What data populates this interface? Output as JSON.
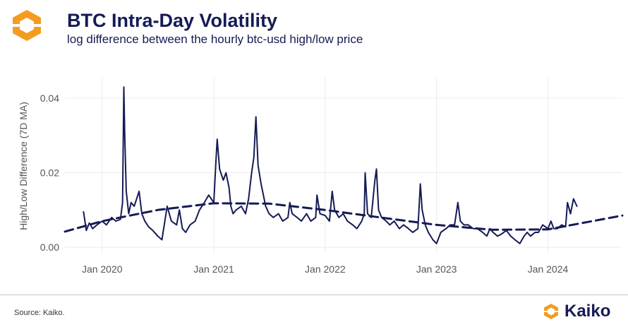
{
  "header": {
    "title": "BTC Intra-Day Volatility",
    "subtitle": "log difference between the hourly btc-usd high/low price",
    "logo_icon": "kaiko-logo-icon"
  },
  "footer": {
    "source": "Source: Kaiko.",
    "brand_name": "Kaiko",
    "brand_icon": "kaiko-logo-icon"
  },
  "colors": {
    "series": "#151b55",
    "brand_orange": "#f39c1f",
    "title": "#151b55",
    "grid": "#ececec"
  },
  "chart_data": {
    "type": "line",
    "title": "BTC Intra-Day Volatility",
    "subtitle": "log difference between the hourly btc-usd high/low price",
    "xlabel": "",
    "ylabel": "High/Low Difference (7D MA)",
    "x_ticks": [
      "Jan 2020",
      "Jan 2021",
      "Jan 2022",
      "Jan 2023",
      "Jan 2024"
    ],
    "y_ticks": [
      "0.00",
      "0.02",
      "0.04"
    ],
    "xlim": [
      "2019-09-01",
      "2024-09-01"
    ],
    "ylim": [
      -0.0015,
      0.0455
    ],
    "grid": true,
    "legend": "none",
    "series": [
      {
        "style": "solid",
        "x": [
          "2019-11-01",
          "2019-11-10",
          "2019-11-20",
          "2019-12-01",
          "2019-12-15",
          "2020-01-01",
          "2020-01-15",
          "2020-02-01",
          "2020-02-15",
          "2020-03-01",
          "2020-03-08",
          "2020-03-12",
          "2020-03-15",
          "2020-03-20",
          "2020-03-28",
          "2020-04-05",
          "2020-04-15",
          "2020-05-01",
          "2020-05-10",
          "2020-05-20",
          "2020-06-01",
          "2020-06-15",
          "2020-07-01",
          "2020-07-15",
          "2020-08-01",
          "2020-08-15",
          "2020-09-01",
          "2020-09-10",
          "2020-09-20",
          "2020-10-01",
          "2020-10-15",
          "2020-11-01",
          "2020-11-15",
          "2020-12-01",
          "2020-12-15",
          "2021-01-01",
          "2021-01-08",
          "2021-01-12",
          "2021-01-20",
          "2021-02-01",
          "2021-02-10",
          "2021-02-20",
          "2021-02-26",
          "2021-03-05",
          "2021-03-15",
          "2021-04-01",
          "2021-04-15",
          "2021-04-25",
          "2021-05-05",
          "2021-05-12",
          "2021-05-19",
          "2021-05-26",
          "2021-06-05",
          "2021-06-20",
          "2021-07-01",
          "2021-07-15",
          "2021-08-01",
          "2021-08-15",
          "2021-09-01",
          "2021-09-07",
          "2021-09-15",
          "2021-10-01",
          "2021-10-15",
          "2021-11-01",
          "2021-11-15",
          "2021-12-01",
          "2021-12-05",
          "2021-12-15",
          "2022-01-01",
          "2022-01-15",
          "2022-01-24",
          "2022-02-01",
          "2022-02-15",
          "2022-03-01",
          "2022-03-15",
          "2022-04-01",
          "2022-04-15",
          "2022-05-01",
          "2022-05-09",
          "2022-05-12",
          "2022-05-20",
          "2022-06-01",
          "2022-06-13",
          "2022-06-18",
          "2022-06-25",
          "2022-07-05",
          "2022-07-20",
          "2022-08-01",
          "2022-08-15",
          "2022-09-01",
          "2022-09-15",
          "2022-10-01",
          "2022-10-15",
          "2022-11-01",
          "2022-11-09",
          "2022-11-15",
          "2022-11-25",
          "2022-12-05",
          "2022-12-20",
          "2023-01-01",
          "2023-01-15",
          "2023-02-01",
          "2023-02-15",
          "2023-03-01",
          "2023-03-12",
          "2023-03-20",
          "2023-04-01",
          "2023-04-15",
          "2023-05-01",
          "2023-05-15",
          "2023-06-01",
          "2023-06-15",
          "2023-06-25",
          "2023-07-05",
          "2023-07-20",
          "2023-08-01",
          "2023-08-18",
          "2023-09-01",
          "2023-09-15",
          "2023-10-01",
          "2023-10-15",
          "2023-10-25",
          "2023-11-05",
          "2023-11-20",
          "2023-12-01",
          "2023-12-15",
          "2024-01-01",
          "2024-01-11",
          "2024-01-20",
          "2024-02-01",
          "2024-02-15",
          "2024-02-28",
          "2024-03-05",
          "2024-03-15",
          "2024-03-25",
          "2024-04-05"
        ],
        "y": [
          0.0095,
          0.0045,
          0.0065,
          0.005,
          0.006,
          0.007,
          0.006,
          0.008,
          0.007,
          0.0075,
          0.012,
          0.043,
          0.03,
          0.015,
          0.009,
          0.012,
          0.011,
          0.015,
          0.009,
          0.007,
          0.0055,
          0.0045,
          0.003,
          0.002,
          0.011,
          0.007,
          0.006,
          0.01,
          0.005,
          0.004,
          0.006,
          0.007,
          0.01,
          0.012,
          0.014,
          0.012,
          0.023,
          0.029,
          0.021,
          0.018,
          0.02,
          0.016,
          0.011,
          0.009,
          0.01,
          0.011,
          0.009,
          0.013,
          0.02,
          0.024,
          0.035,
          0.022,
          0.017,
          0.011,
          0.009,
          0.008,
          0.009,
          0.007,
          0.008,
          0.012,
          0.009,
          0.008,
          0.007,
          0.009,
          0.007,
          0.008,
          0.014,
          0.009,
          0.0085,
          0.007,
          0.015,
          0.01,
          0.008,
          0.009,
          0.007,
          0.006,
          0.005,
          0.007,
          0.009,
          0.02,
          0.009,
          0.008,
          0.018,
          0.021,
          0.01,
          0.008,
          0.007,
          0.006,
          0.007,
          0.005,
          0.006,
          0.005,
          0.004,
          0.005,
          0.017,
          0.01,
          0.006,
          0.004,
          0.002,
          0.001,
          0.004,
          0.005,
          0.006,
          0.006,
          0.012,
          0.007,
          0.006,
          0.006,
          0.005,
          0.005,
          0.004,
          0.003,
          0.005,
          0.004,
          0.003,
          0.0035,
          0.0045,
          0.003,
          0.002,
          0.001,
          0.003,
          0.004,
          0.003,
          0.004,
          0.004,
          0.006,
          0.005,
          0.007,
          0.005,
          0.005,
          0.006,
          0.0055,
          0.012,
          0.009,
          0.013,
          0.011
        ]
      },
      {
        "style": "dashed",
        "x": [
          "2019-09-01",
          "2020-01-01",
          "2020-07-01",
          "2021-01-01",
          "2021-07-01",
          "2022-01-01",
          "2022-07-01",
          "2023-01-01",
          "2023-07-01",
          "2024-01-01",
          "2024-09-01"
        ],
        "y": [
          0.0042,
          0.007,
          0.01,
          0.0118,
          0.0117,
          0.01,
          0.008,
          0.006,
          0.0047,
          0.0048,
          0.0085
        ]
      }
    ]
  }
}
